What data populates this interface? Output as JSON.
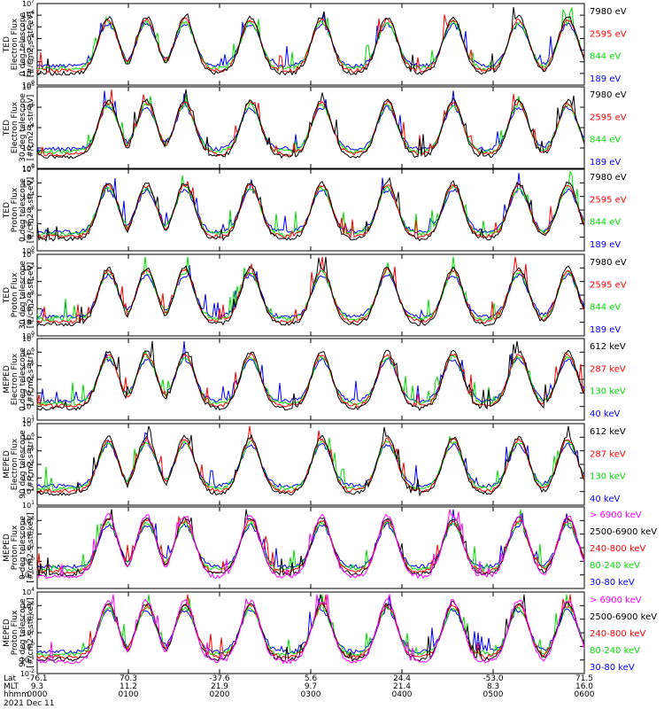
{
  "colors": {
    "blue": "#0000ff",
    "red": "#ff0000",
    "green": "#00dd00",
    "black": "#000000",
    "magenta": "#ff00ff"
  },
  "chart_data": [
    {
      "type": "line",
      "ylabel": [
        "TED",
        "Electron Flux",
        "0 deg telescope",
        "[#/cm2-s-str-eV]"
      ],
      "log_scale": true,
      "ylim_exp": [
        0,
        7
      ],
      "y_ticks": [
        {
          "base": "10",
          "exp": "0"
        },
        {
          "base": "10",
          "exp": "1"
        },
        {
          "base": "10",
          "exp": "2"
        },
        {
          "base": "10",
          "exp": "3"
        },
        {
          "base": "10",
          "exp": "4"
        },
        {
          "base": "10",
          "exp": "5"
        },
        {
          "base": "10",
          "exp": "6"
        },
        {
          "base": "10",
          "exp": "7"
        }
      ],
      "series": [
        {
          "name": "7980 eV",
          "color": "#000000"
        },
        {
          "name": "2595 eV",
          "color": "#ff0000"
        },
        {
          "name": "844 eV",
          "color": "#00dd00"
        },
        {
          "name": "189 eV",
          "color": "#0000ff"
        }
      ]
    },
    {
      "type": "line",
      "ylabel": [
        "TED",
        "Electron Flux",
        "30 deg telescope",
        "[#/cm2-s-str-eV]"
      ],
      "log_scale": true,
      "ylim_exp": [
        0,
        8
      ],
      "y_ticks": [
        {
          "base": "10",
          "exp": "0"
        },
        {
          "base": "10",
          "exp": "2"
        },
        {
          "base": "10",
          "exp": "4"
        },
        {
          "base": "10",
          "exp": "6"
        },
        {
          "base": "10",
          "exp": "8"
        }
      ],
      "series": [
        {
          "name": "7980 eV",
          "color": "#000000"
        },
        {
          "name": "2595 eV",
          "color": "#ff0000"
        },
        {
          "name": "844 eV",
          "color": "#00dd00"
        },
        {
          "name": "189 eV",
          "color": "#0000ff"
        }
      ]
    },
    {
      "type": "line",
      "ylabel": [
        "TED",
        "Proton Flux",
        "0 deg telescope",
        "[#/cm2-s-str-eV]"
      ],
      "log_scale": true,
      "ylim_exp": [
        0,
        6
      ],
      "y_ticks": [
        {
          "base": "10",
          "exp": "0"
        },
        {
          "base": "10",
          "exp": "1"
        },
        {
          "base": "10",
          "exp": "2"
        },
        {
          "base": "10",
          "exp": "3"
        },
        {
          "base": "10",
          "exp": "4"
        },
        {
          "base": "10",
          "exp": "5"
        },
        {
          "base": "10",
          "exp": "6"
        }
      ],
      "series": [
        {
          "name": "7980 eV",
          "color": "#000000"
        },
        {
          "name": "2595 eV",
          "color": "#ff0000"
        },
        {
          "name": "844 eV",
          "color": "#00dd00"
        },
        {
          "name": "189 eV",
          "color": "#0000ff"
        }
      ]
    },
    {
      "type": "line",
      "ylabel": [
        "TED",
        "Proton Flux",
        "30 deg telescope",
        "[#/cm2-s-str-eV]"
      ],
      "log_scale": true,
      "ylim_exp": [
        0,
        6
      ],
      "y_ticks": [
        {
          "base": "10",
          "exp": "0"
        },
        {
          "base": "10",
          "exp": "1"
        },
        {
          "base": "10",
          "exp": "2"
        },
        {
          "base": "10",
          "exp": "3"
        },
        {
          "base": "10",
          "exp": "4"
        },
        {
          "base": "10",
          "exp": "5"
        },
        {
          "base": "10",
          "exp": "6"
        }
      ],
      "series": [
        {
          "name": "7980 eV",
          "color": "#000000"
        },
        {
          "name": "2595 eV",
          "color": "#ff0000"
        },
        {
          "name": "844 eV",
          "color": "#00dd00"
        },
        {
          "name": "189 eV",
          "color": "#0000ff"
        }
      ]
    },
    {
      "type": "line",
      "ylabel": [
        "MEPED",
        "Electron Flux",
        "0 deg telescope",
        "[#/cm2-s-str]"
      ],
      "log_scale": true,
      "ylim_exp": [
        1,
        7
      ],
      "y_ticks": [
        {
          "base": "10",
          "exp": "1"
        },
        {
          "base": "10",
          "exp": "2"
        },
        {
          "base": "10",
          "exp": "3"
        },
        {
          "base": "10",
          "exp": "4"
        },
        {
          "base": "10",
          "exp": "5"
        },
        {
          "base": "10",
          "exp": "6"
        },
        {
          "base": "10",
          "exp": "7"
        }
      ],
      "series": [
        {
          "name": "612 keV",
          "color": "#000000"
        },
        {
          "name": "287 keV",
          "color": "#ff0000"
        },
        {
          "name": "130 keV",
          "color": "#00dd00"
        },
        {
          "name": "40 keV",
          "color": "#0000ff"
        }
      ]
    },
    {
      "type": "line",
      "ylabel": [
        "MEPED",
        "Electron Flux",
        "90 deg telescope",
        "[#/cm2-s-str]"
      ],
      "log_scale": true,
      "ylim_exp": [
        1,
        7
      ],
      "y_ticks": [
        {
          "base": "10",
          "exp": "1"
        },
        {
          "base": "10",
          "exp": "2"
        },
        {
          "base": "10",
          "exp": "3"
        },
        {
          "base": "10",
          "exp": "4"
        },
        {
          "base": "10",
          "exp": "5"
        },
        {
          "base": "10",
          "exp": "6"
        },
        {
          "base": "10",
          "exp": "7"
        }
      ],
      "series": [
        {
          "name": "612 keV",
          "color": "#000000"
        },
        {
          "name": "287 keV",
          "color": "#ff0000"
        },
        {
          "name": "130 keV",
          "color": "#00dd00"
        },
        {
          "name": "40 keV",
          "color": "#0000ff"
        }
      ]
    },
    {
      "type": "line",
      "ylabel": [
        "MEPED",
        "Proton Flux",
        "0 deg telescope",
        "[#/cm2-s-str-keV]"
      ],
      "log_scale": true,
      "ylim_exp": [
        -2,
        4
      ],
      "y_ticks": [
        {
          "base": "10",
          "exp": "-1"
        },
        {
          "base": "10",
          "exp": "0"
        },
        {
          "base": "10",
          "exp": "1"
        },
        {
          "base": "10",
          "exp": "2"
        },
        {
          "base": "10",
          "exp": "3"
        }
      ],
      "series": [
        {
          "name": "> 6900 keV",
          "color": "#ff00ff"
        },
        {
          "name": "2500-6900 keV",
          "color": "#000000"
        },
        {
          "name": "240-800 keV",
          "color": "#ff0000"
        },
        {
          "name": "80-240 keV",
          "color": "#00dd00"
        },
        {
          "name": "30-80 keV",
          "color": "#0000ff"
        }
      ]
    },
    {
      "type": "line",
      "ylabel": [
        "MEPED",
        "Proton Flux",
        "90 deg telescope",
        "[#/cm2-s-str-keV]"
      ],
      "log_scale": true,
      "ylim_exp": [
        -2,
        4
      ],
      "y_ticks": [
        {
          "base": "10",
          "exp": "-2"
        },
        {
          "base": "10",
          "exp": "-1"
        },
        {
          "base": "10",
          "exp": "0"
        },
        {
          "base": "10",
          "exp": "1"
        },
        {
          "base": "10",
          "exp": "2"
        },
        {
          "base": "10",
          "exp": "3"
        },
        {
          "base": "10",
          "exp": "4"
        }
      ],
      "series": [
        {
          "name": "> 6900 keV",
          "color": "#ff00ff"
        },
        {
          "name": "2500-6900 keV",
          "color": "#000000"
        },
        {
          "name": "240-800 keV",
          "color": "#ff0000"
        },
        {
          "name": "80-240 keV",
          "color": "#00dd00"
        },
        {
          "name": "30-80 keV",
          "color": "#0000ff"
        }
      ]
    }
  ],
  "x_axis": {
    "row_labels": [
      "Lat",
      "MLT",
      "hhmm"
    ],
    "date": "2021 Dec 11",
    "ticks": [
      {
        "lat": "-76.1",
        "mlt": "9.3",
        "hhmm": "0000"
      },
      {
        "lat": "70.3",
        "mlt": "11.2",
        "hhmm": "0100"
      },
      {
        "lat": "-37.6",
        "mlt": "21.9",
        "hhmm": "0200"
      },
      {
        "lat": "5.6",
        "mlt": "9.7",
        "hhmm": "0300"
      },
      {
        "lat": "24.4",
        "mlt": "21.4",
        "hhmm": "0400"
      },
      {
        "lat": "-53.0",
        "mlt": "8.3",
        "hhmm": "0500"
      },
      {
        "lat": "71.5",
        "mlt": "16.0",
        "hhmm": "0600"
      }
    ]
  }
}
